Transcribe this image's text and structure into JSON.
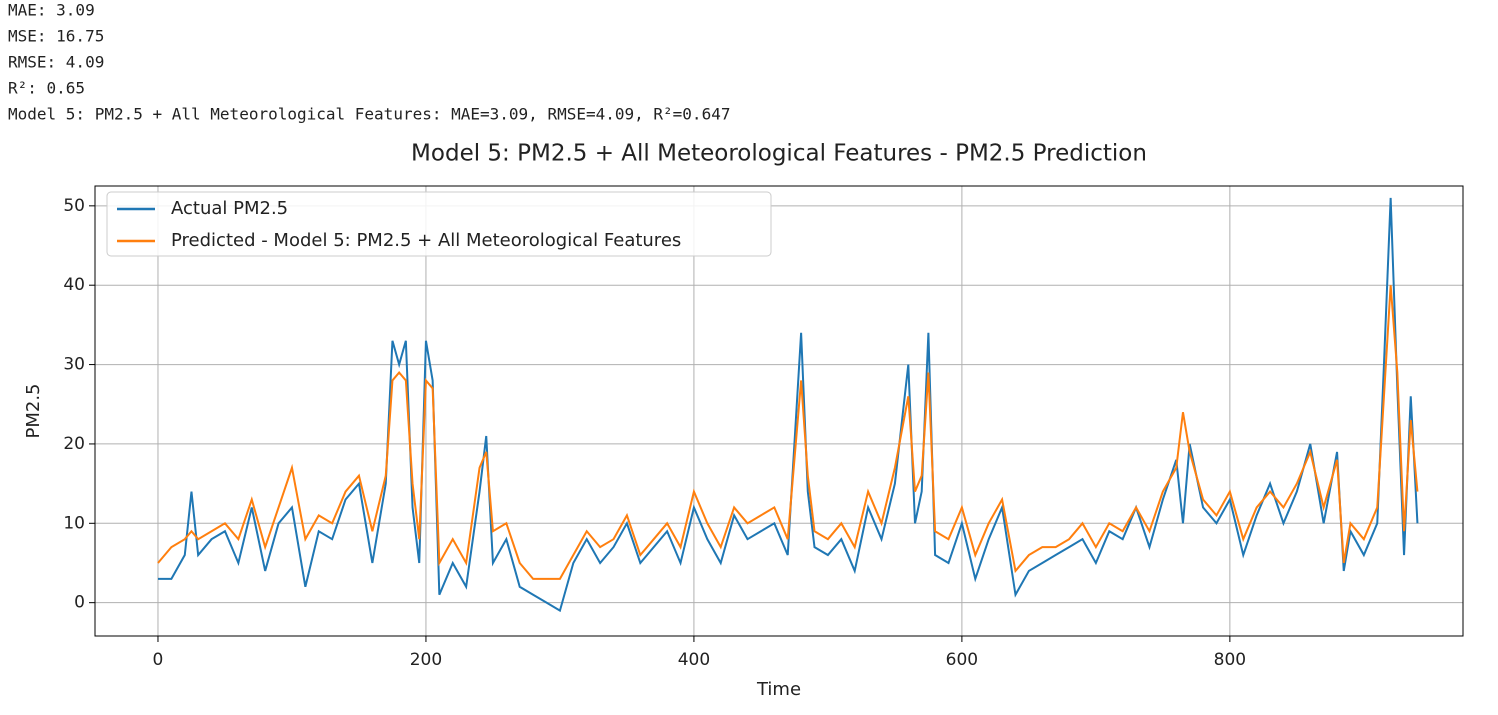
{
  "output_lines": [
    "MAE: 3.09",
    "MSE: 16.75",
    "RMSE: 4.09",
    "R²: 0.65",
    "Model 5: PM2.5 + All Meteorological Features: MAE=3.09, RMSE=4.09, R²=0.647"
  ],
  "chart_data": {
    "type": "line",
    "title": "Model 5: PM2.5 + All Meteorological Features - PM2.5 Prediction",
    "x_label": "Time",
    "y_label": "PM2.5",
    "x": [
      0,
      10,
      20,
      25,
      30,
      40,
      50,
      60,
      70,
      80,
      90,
      100,
      110,
      120,
      130,
      140,
      150,
      160,
      170,
      175,
      180,
      185,
      190,
      195,
      200,
      205,
      210,
      220,
      230,
      240,
      245,
      250,
      260,
      270,
      280,
      290,
      300,
      310,
      320,
      330,
      340,
      350,
      360,
      370,
      380,
      390,
      400,
      410,
      420,
      430,
      440,
      450,
      460,
      470,
      480,
      485,
      490,
      500,
      510,
      520,
      530,
      540,
      550,
      560,
      565,
      570,
      575,
      580,
      590,
      600,
      610,
      620,
      630,
      640,
      650,
      660,
      670,
      680,
      690,
      700,
      710,
      720,
      730,
      740,
      750,
      760,
      765,
      770,
      780,
      790,
      800,
      810,
      820,
      830,
      840,
      850,
      860,
      870,
      880,
      885,
      890,
      900,
      910,
      915,
      920,
      925,
      930,
      935,
      940
    ],
    "series": [
      {
        "name": "Actual PM2.5",
        "color": "#1f77b4",
        "values": [
          3,
          3,
          6,
          14,
          6,
          8,
          9,
          5,
          12,
          4,
          10,
          12,
          2,
          9,
          8,
          13,
          15,
          5,
          15,
          33,
          30,
          33,
          12,
          5,
          33,
          28,
          1,
          5,
          2,
          14,
          21,
          5,
          8,
          2,
          1,
          0,
          -1,
          5,
          8,
          5,
          7,
          10,
          5,
          7,
          9,
          5,
          12,
          8,
          5,
          11,
          8,
          9,
          10,
          6,
          34,
          14,
          7,
          6,
          8,
          4,
          12,
          8,
          15,
          30,
          10,
          14,
          34,
          6,
          5,
          10,
          3,
          8,
          12,
          1,
          4,
          5,
          6,
          7,
          8,
          5,
          9,
          8,
          12,
          7,
          13,
          18,
          10,
          20,
          12,
          10,
          13,
          6,
          11,
          15,
          10,
          14,
          20,
          10,
          19,
          4,
          9,
          6,
          10,
          30,
          51,
          27,
          6,
          26,
          10
        ]
      },
      {
        "name": "Predicted - Model 5: PM2.5 + All Meteorological Features",
        "color": "#ff7f0e",
        "values": [
          5,
          7,
          8,
          9,
          8,
          9,
          10,
          8,
          13,
          7,
          12,
          17,
          8,
          11,
          10,
          14,
          16,
          9,
          16,
          28,
          29,
          28,
          15,
          8,
          28,
          27,
          5,
          8,
          5,
          17,
          19,
          9,
          10,
          5,
          3,
          3,
          3,
          6,
          9,
          7,
          8,
          11,
          6,
          8,
          10,
          7,
          14,
          10,
          7,
          12,
          10,
          11,
          12,
          8,
          28,
          16,
          9,
          8,
          10,
          7,
          14,
          10,
          17,
          26,
          14,
          16,
          29,
          9,
          8,
          12,
          6,
          10,
          13,
          4,
          6,
          7,
          7,
          8,
          10,
          7,
          10,
          9,
          12,
          9,
          14,
          17,
          24,
          19,
          13,
          11,
          14,
          8,
          12,
          14,
          12,
          15,
          19,
          12,
          18,
          5,
          10,
          8,
          12,
          26,
          40,
          29,
          9,
          23,
          14
        ]
      }
    ],
    "xlim": [
      -47,
      974
    ],
    "ylim": [
      -4.2,
      52.5
    ],
    "xticks": [
      0,
      200,
      400,
      600,
      800
    ],
    "yticks": [
      0,
      10,
      20,
      30,
      40,
      50
    ],
    "grid": true,
    "legend": "upper left"
  }
}
